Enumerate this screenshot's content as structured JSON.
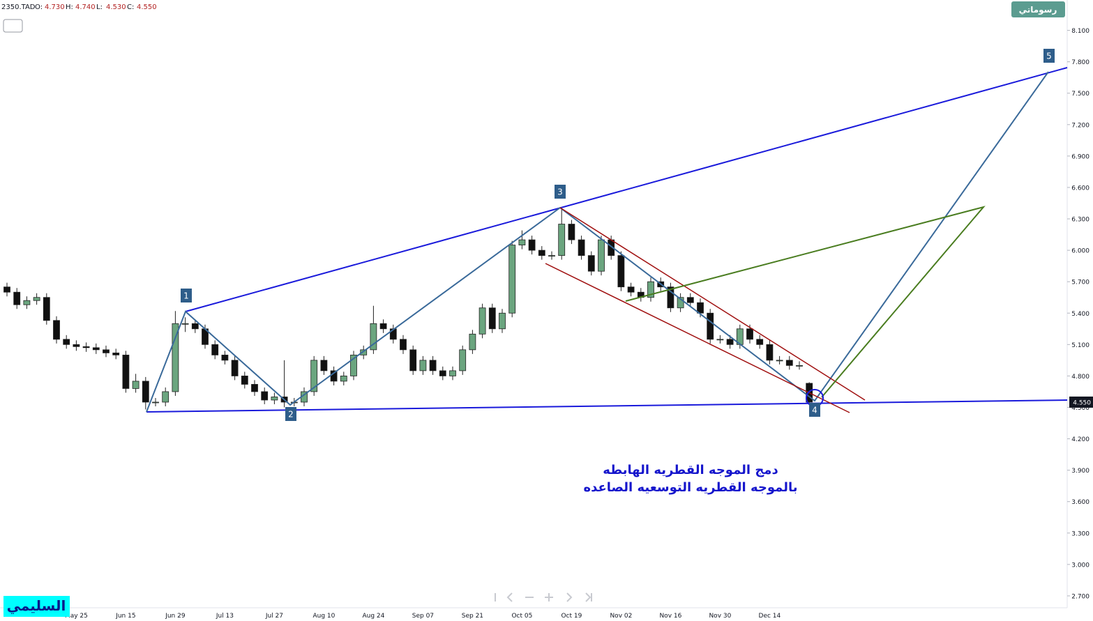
{
  "chart_data": {
    "type": "candlestick",
    "symbol": "2350.TAD",
    "ohlc_legend": [
      {
        "key": "O:",
        "price": {
          "value": 4.73,
          "label": "4.730"
        }
      },
      {
        "key": "H:",
        "price": {
          "value": 4.74,
          "label": "4.740"
        }
      },
      {
        "key": "L:",
        "price": {
          "value": 4.53,
          "label": "4.530"
        }
      },
      {
        "key": "C:",
        "price": {
          "value": 4.55,
          "label": "4.550"
        }
      }
    ],
    "button": "رسوماتي",
    "badge": "السليمي",
    "annotation": [
      "دمج الموجه القطريه الهابطه",
      "بالموجه القطريه التوسعيه الصاعده"
    ],
    "wave_labels": [
      "1",
      "2",
      "3",
      "4",
      "5"
    ],
    "last_price": {
      "value": 4.55,
      "label": "4.550"
    },
    "up_color": "#6ba57f",
    "down_color": "#111111",
    "categories": [
      null,
      null,
      null,
      null,
      null,
      null,
      null,
      "May 25",
      null,
      null,
      null,
      null,
      "Jun 15",
      null,
      null,
      null,
      null,
      "Jun 29",
      null,
      null,
      null,
      null,
      "Jul 13",
      null,
      null,
      null,
      null,
      "Jul 27",
      null,
      null,
      null,
      null,
      "Aug 10",
      null,
      null,
      null,
      null,
      "Aug 24",
      null,
      null,
      null,
      null,
      "Sep 07",
      null,
      null,
      null,
      null,
      "Sep 21",
      null,
      null,
      null,
      null,
      "Oct 05",
      null,
      null,
      null,
      null,
      "Oct 19",
      null,
      null,
      null,
      null,
      "Nov 02",
      null,
      null,
      null,
      null,
      "Nov 16",
      null,
      null,
      null,
      null,
      "Nov 30",
      null,
      null,
      null,
      null,
      "Dec 14",
      null,
      null,
      null,
      null
    ],
    "open": [
      5.65,
      5.6,
      5.48,
      5.52,
      5.55,
      5.33,
      5.15,
      5.1,
      5.08,
      5.07,
      5.05,
      5.02,
      5.0,
      4.68,
      4.75,
      4.55,
      4.55,
      4.65,
      5.3,
      5.3,
      5.25,
      5.1,
      5.0,
      4.95,
      4.8,
      4.72,
      4.65,
      4.57,
      4.6,
      4.55,
      4.55,
      4.65,
      4.95,
      4.85,
      4.75,
      4.8,
      5.0,
      5.05,
      5.3,
      5.25,
      5.15,
      5.05,
      4.85,
      4.95,
      4.85,
      4.8,
      4.85,
      5.05,
      5.2,
      5.45,
      5.25,
      5.4,
      6.05,
      6.1,
      6.0,
      5.95,
      5.95,
      6.25,
      6.1,
      5.95,
      5.8,
      6.1,
      5.95,
      5.65,
      5.6,
      5.55,
      5.7,
      5.65,
      5.45,
      5.55,
      5.5,
      5.4,
      5.15,
      5.15,
      5.1,
      5.25,
      5.15,
      5.1,
      4.95,
      4.95,
      4.9,
      4.73
    ],
    "high": [
      5.69,
      5.64,
      5.56,
      5.59,
      5.59,
      5.37,
      5.19,
      5.14,
      5.12,
      5.11,
      5.09,
      5.06,
      5.04,
      4.82,
      4.79,
      4.59,
      4.69,
      5.42,
      5.36,
      5.34,
      5.29,
      5.14,
      5.04,
      4.99,
      4.84,
      4.76,
      4.69,
      4.64,
      4.95,
      4.59,
      4.69,
      4.99,
      4.99,
      4.89,
      4.84,
      5.04,
      5.09,
      5.47,
      5.34,
      5.29,
      5.19,
      5.09,
      4.99,
      4.99,
      4.89,
      4.89,
      5.09,
      5.24,
      5.49,
      5.49,
      5.44,
      6.09,
      6.19,
      6.14,
      6.04,
      5.99,
      6.41,
      6.29,
      6.14,
      5.99,
      6.14,
      6.14,
      5.99,
      5.69,
      5.64,
      5.74,
      5.74,
      5.69,
      5.59,
      5.59,
      5.54,
      5.44,
      5.19,
      5.19,
      5.29,
      5.29,
      5.19,
      5.14,
      4.99,
      4.99,
      4.94,
      4.74
    ],
    "low": [
      5.56,
      5.44,
      5.44,
      5.48,
      5.29,
      5.11,
      5.06,
      5.04,
      5.03,
      5.01,
      4.98,
      4.96,
      4.64,
      4.64,
      4.48,
      4.51,
      4.51,
      4.61,
      5.22,
      5.21,
      5.06,
      4.96,
      4.91,
      4.76,
      4.68,
      4.61,
      4.53,
      4.53,
      4.5,
      4.51,
      4.51,
      4.61,
      4.81,
      4.71,
      4.71,
      4.76,
      4.96,
      5.01,
      5.21,
      5.11,
      5.01,
      4.81,
      4.81,
      4.81,
      4.76,
      4.76,
      4.81,
      5.01,
      5.16,
      5.21,
      5.21,
      5.36,
      6.01,
      5.96,
      5.91,
      5.91,
      5.91,
      6.06,
      5.91,
      5.76,
      5.76,
      5.91,
      5.61,
      5.56,
      5.51,
      5.51,
      5.61,
      5.41,
      5.41,
      5.46,
      5.36,
      5.11,
      5.11,
      5.06,
      5.06,
      5.11,
      5.06,
      4.91,
      4.91,
      4.86,
      4.86,
      4.53
    ],
    "close": [
      5.6,
      5.48,
      5.52,
      5.55,
      5.33,
      5.15,
      5.1,
      5.08,
      5.07,
      5.05,
      5.02,
      5.0,
      4.68,
      4.75,
      4.55,
      4.55,
      4.65,
      5.3,
      5.3,
      5.25,
      5.1,
      5.0,
      4.95,
      4.8,
      4.72,
      4.65,
      4.57,
      4.6,
      4.55,
      4.55,
      4.65,
      4.95,
      4.85,
      4.75,
      4.8,
      5.0,
      5.05,
      5.3,
      5.25,
      5.15,
      5.05,
      4.85,
      4.95,
      4.85,
      4.8,
      4.85,
      5.05,
      5.2,
      5.45,
      5.25,
      5.4,
      6.05,
      6.1,
      6.0,
      5.95,
      5.95,
      6.25,
      6.1,
      5.95,
      5.8,
      6.1,
      5.95,
      5.65,
      5.6,
      5.55,
      5.7,
      5.65,
      5.45,
      5.55,
      5.5,
      5.4,
      5.15,
      5.15,
      5.1,
      5.25,
      5.15,
      5.1,
      4.95,
      4.95,
      4.9,
      4.9,
      4.55
    ],
    "ylim": [
      2.46,
      8.39
    ],
    "yticks": [
      {
        "value": 2.7,
        "label": "2.700"
      },
      {
        "value": 3.0,
        "label": "3.000"
      },
      {
        "value": 3.3,
        "label": "3.300"
      },
      {
        "value": 3.6,
        "label": "3.600"
      },
      {
        "value": 3.9,
        "label": "3.900"
      },
      {
        "value": 4.2,
        "label": "4.200"
      },
      {
        "value": 4.5,
        "label": "4.500"
      },
      {
        "value": 4.8,
        "label": "4.800"
      },
      {
        "value": 5.1,
        "label": "5.100"
      },
      {
        "value": 5.4,
        "label": "5.400"
      },
      {
        "value": 5.7,
        "label": "5.700"
      },
      {
        "value": 6.0,
        "label": "6.000"
      },
      {
        "value": 6.3,
        "label": "6.300"
      },
      {
        "value": 6.6,
        "label": "6.600"
      },
      {
        "value": 6.9,
        "label": "6.900"
      },
      {
        "value": 7.2,
        "label": "7.200"
      },
      {
        "value": 7.5,
        "label": "7.500"
      },
      {
        "value": 7.8,
        "label": "7.800"
      },
      {
        "value": 8.1,
        "label": "8.100"
      }
    ]
  }
}
